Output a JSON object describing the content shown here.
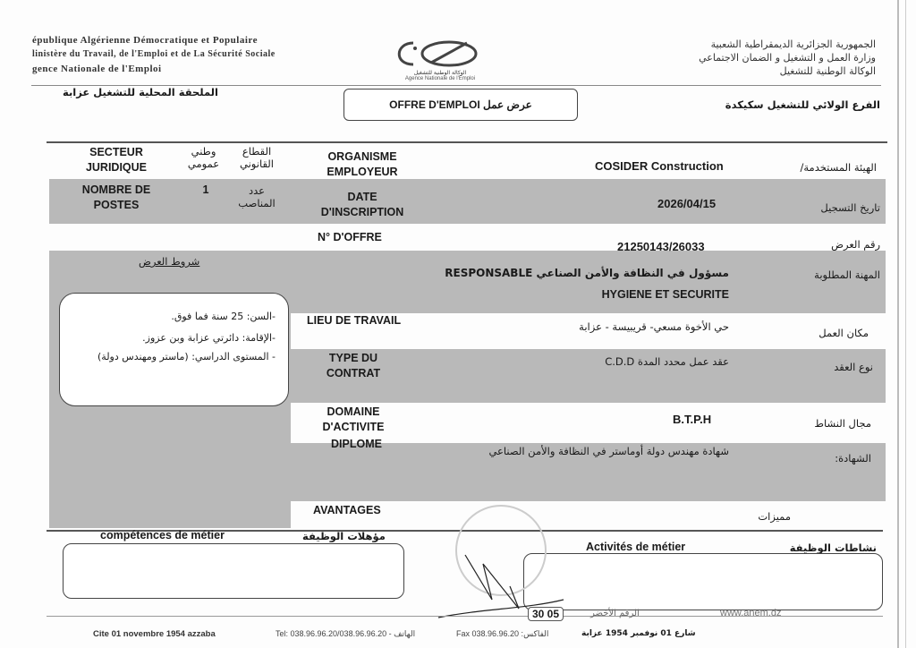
{
  "header": {
    "fr_lines": [
      "épublique Algérienne Démocratique et Populaire",
      "linistère du Travail, de l'Emploi et de La Sécurité Sociale",
      "gence  Nationale  de  l'Emploi"
    ],
    "ar_lines": [
      "الجمهورية الجزائرية الديمقراطية الشعبية",
      "وزارة العمل و التشغيل و الضمان الاجتماعي",
      "الوكالة الوطنية للتشغيل"
    ],
    "logo_caption_ar": "الوكالة الوطنية للتشغيل",
    "logo_caption_fr": "Agence Nationale de l'Emploi",
    "left_office": "الملحقة المحلية للتشغيل عزابة",
    "right_office": "الفرع الولائي للتشغيل سكيكدة",
    "title": "OFFRE D'EMPLOI عرض عمل"
  },
  "form": {
    "secteur_label": "SECTEUR JURIDIQUE",
    "secteur_value": "وطني عمومي",
    "secteur_label_ar": "القطاع القانوني",
    "organisme_label": "ORGANISME EMPLOYEUR",
    "organisme_value": "COSIDER Construction",
    "organisme_label_ar": "الهيئة المستخدمة/",
    "postes_label": "NOMBRE DE POSTES",
    "postes_value": "1",
    "postes_label_ar": "عدد المناصب",
    "date_label": "DATE D'INSCRIPTION",
    "date_value": "2026/04/15",
    "date_label_ar": "تاريخ التسجيل",
    "offre_label": "N° D'OFFRE",
    "offre_value": "21250143/26033",
    "offre_label_ar": "رقم العرض",
    "conditions_title": "شروط العرض",
    "conditions": [
      "-السن: 25 سنة فما فوق.",
      "-الإقامة: دائرتي عزابة وبن عزوز.",
      "- المستوى الدراسي: (ماستر ومهندس دولة)"
    ],
    "metier_value_1": "مسؤول في النظافة والأمن الصناعي RESPONSABLE",
    "metier_value_2": "HYGIENE ET SECURITE",
    "metier_label_ar": "المهنة المطلوبة",
    "lieu_label": "LIEU DE TRAVAIL",
    "lieu_value": "حي الأخوة مسعي- قريبيسة - عزابة",
    "lieu_label_ar": "مكان العمل",
    "contrat_label": "TYPE DU CONTRAT",
    "contrat_value": "عقد عمل محدد المدة C.D.D",
    "contrat_label_ar": "نوع العقد",
    "domaine_label": "DOMAINE D'ACTIVITE",
    "domaine_value": "B.T.P.H",
    "domaine_label_ar": "مجال النشاط",
    "diplome_label": "DIPLOME",
    "diplome_value": "شهادة مهندس دولة أوماستر في النظافة والأمن الصناعي",
    "diplome_label_ar": "الشهادة:",
    "avantages_label": "AVANTAGES",
    "avantages_label_ar": "مميزات",
    "competences_label": "compétences de métier",
    "competences_label_ar": "مؤهلات الوظيفة",
    "activites_label": "Activités de métier",
    "activites_label_ar": "نشاطات الوظيفة"
  },
  "footer": {
    "address_fr": "Cite 01 novembre 1954 azzaba",
    "tel": "Tel: 038.96.96.20/038.96.96.20  - الهاتف",
    "fax": "Fax 038.96.96.20 :الفاكس",
    "address_ar": "شارع 01 نوفمبر 1954 عزابة",
    "green_number_label": "الرقم الأخضر",
    "green_number": "30 05",
    "website": "www.anem.dz"
  }
}
